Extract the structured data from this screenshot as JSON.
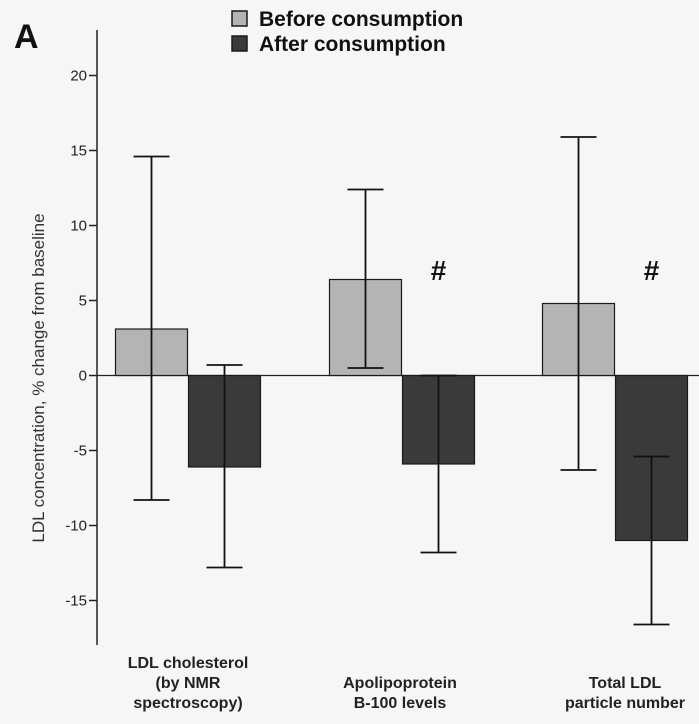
{
  "chart_data": {
    "type": "bar",
    "panel_label": "A",
    "ylabel": "LDL concentration, % change from baseline",
    "xlabel": "",
    "ylim": [
      -18,
      22
    ],
    "yticks": [
      20,
      15,
      10,
      5,
      0,
      -5,
      -10,
      -15
    ],
    "categories": [
      [
        "LDL cholesterol",
        "(by NMR",
        "spectroscopy)"
      ],
      [
        "Apolipoprotein",
        "B-100 levels"
      ],
      [
        "Total LDL",
        "particle number"
      ]
    ],
    "legend_position": "top",
    "series": [
      {
        "name": "Before consumption",
        "color": "#b4b4b4",
        "values": [
          3.1,
          6.4,
          4.8
        ],
        "error_upper": [
          14.6,
          12.4,
          15.9
        ],
        "error_lower": [
          -8.3,
          0.5,
          -6.3
        ]
      },
      {
        "name": "After consumption",
        "color": "#3a3a3a",
        "values": [
          -6.1,
          -5.9,
          -11.0
        ],
        "error_upper": [
          0.7,
          0.0,
          -5.4
        ],
        "error_lower": [
          -12.8,
          -11.8,
          -16.6
        ]
      }
    ],
    "annotations": [
      {
        "category_index": 1,
        "text": "#"
      },
      {
        "category_index": 2,
        "text": "#"
      }
    ]
  }
}
